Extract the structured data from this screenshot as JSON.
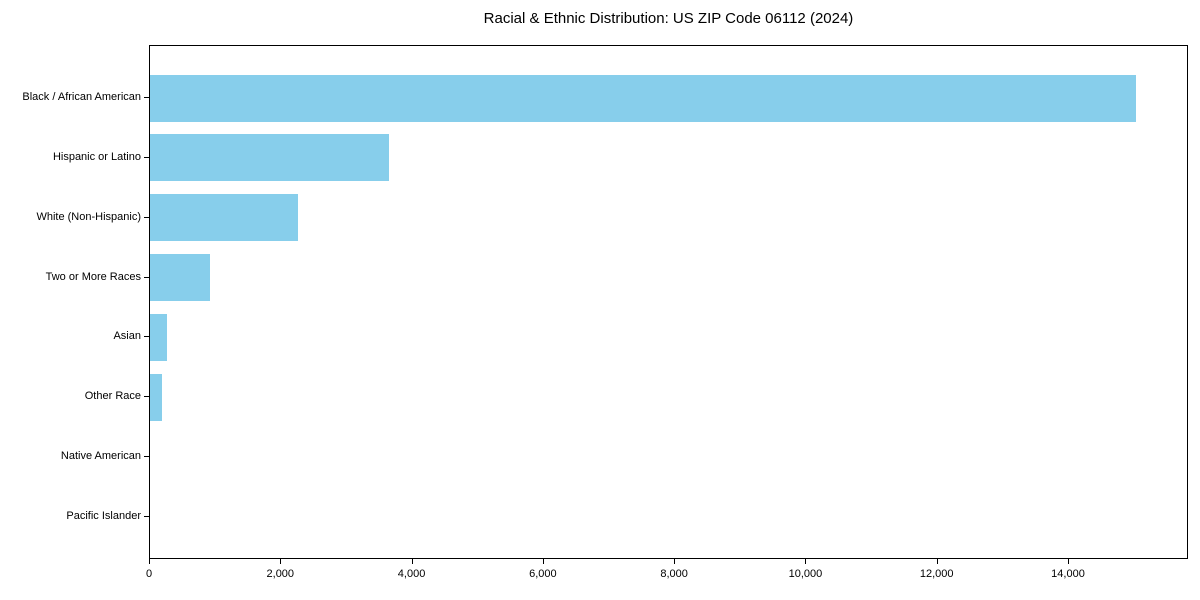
{
  "chart_data": {
    "type": "bar",
    "orientation": "horizontal",
    "title": "Racial & Ethnic Distribution: US ZIP Code 06112 (2024)",
    "categories": [
      "Black / African American",
      "Hispanic or Latino",
      "White (Non-Hispanic)",
      "Two or More Races",
      "Asian",
      "Other Race",
      "Native American",
      "Pacific Islander"
    ],
    "values": [
      15020,
      3640,
      2250,
      915,
      260,
      185,
      0,
      0
    ],
    "xlabel": "",
    "ylabel": "",
    "xlim": [
      0,
      15828
    ],
    "xticks": [
      0,
      2000,
      4000,
      6000,
      8000,
      10000,
      12000,
      14000
    ],
    "xtick_labels": [
      "0",
      "2,000",
      "4,000",
      "6,000",
      "8,000",
      "10,000",
      "12,000",
      "14,000"
    ],
    "bar_color": "#87CEEB",
    "grid": false,
    "legend": null,
    "background_color": "#ffffff",
    "axis_color": "#000000",
    "text_color": "#000000"
  }
}
